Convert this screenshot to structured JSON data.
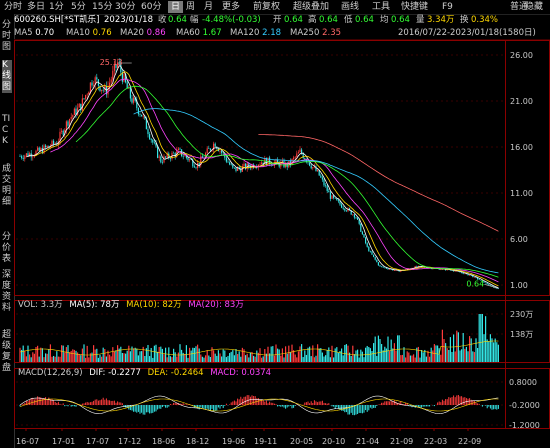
{
  "toolbar": {
    "items": [
      "分时",
      "多日",
      "1分",
      "5分",
      "15分",
      "30分",
      "60分",
      "日",
      "周",
      "月",
      "更多",
      "前复权",
      "超级叠加",
      "画线",
      "工具",
      "快捷键",
      "F9",
      "普通",
      "隐藏"
    ],
    "active_index": 7
  },
  "side_tabs": [
    "分时图",
    "K线图",
    "TICK",
    "成交明细",
    "分价表",
    "深度资料",
    "超级复盘"
  ],
  "quote": {
    "symbol": "600260.SH[*ST凯乐]",
    "date": "2023/01/18",
    "close_label": "收",
    "close": "0.64",
    "change_label": "幅",
    "change": "-4.48%(-0.03)",
    "open_label": "开",
    "open": "0.64",
    "high_label": "高",
    "high": "0.64",
    "low_label": "低",
    "low": "0.64",
    "avg_label": "均",
    "avg": "0.64",
    "volume_label": "量",
    "volume": "3.34万",
    "turnover_label": "换",
    "turnover": "0.34%"
  },
  "ma": [
    {
      "label": "MA5",
      "value": "0.70",
      "color": "#ffffff"
    },
    {
      "label": "MA10",
      "value": "0.76",
      "color": "#ffd800"
    },
    {
      "label": "MA20",
      "value": "0.86",
      "color": "#ff44ff"
    },
    {
      "label": "MA60",
      "value": "1.67",
      "color": "#33ff33"
    },
    {
      "label": "MA120",
      "value": "2.18",
      "color": "#33ccff"
    },
    {
      "label": "MA250",
      "value": "2.35",
      "color": "#ff6666"
    }
  ],
  "range_text": "2016/07/22-2023/01/18(1580日)",
  "price_axis": [
    "26.00",
    "21.00",
    "16.00",
    "11.00",
    "6.00",
    "1.00"
  ],
  "annotations": {
    "high": "25.13",
    "low": "0.64"
  },
  "vol_panel": {
    "label": "VOL: 3.3万",
    "ma5": "MA(5): 78万",
    "ma10": "MA(10): 82万",
    "ma20": "MA(20): 83万",
    "axis": [
      "230万",
      "138万"
    ]
  },
  "macd_panel": {
    "label": "MACD(12,26,9)",
    "dif": "DIF: -0.2277",
    "dea": "DEA: -0.2464",
    "macd": "MACD: 0.0374",
    "axis": [
      "0.8000",
      "-0.2000",
      "-1.2000"
    ]
  },
  "date_axis": [
    "16-07",
    "17-01",
    "17-07",
    "17-12",
    "18-06",
    "18-12",
    "19-06",
    "19-11",
    "20-05",
    "20-10",
    "21-04",
    "21-09",
    "22-03",
    "22-09"
  ],
  "colors": {
    "up": "#ff3b3b",
    "down": "#33e6e6",
    "white": "#ffffff",
    "grid": "#3a0000",
    "border": "#8b0000"
  },
  "chart_data": {
    "type": "candlestick",
    "price_ylim": [
      1.0,
      26.0
    ],
    "close_path": [
      [
        "2016-07",
        15.0
      ],
      [
        "2016-10",
        15.5
      ],
      [
        "2017-01",
        16.5
      ],
      [
        "2017-03",
        19.0
      ],
      [
        "2017-05",
        20.5
      ],
      [
        "2017-07",
        23.5
      ],
      [
        "2017-09",
        22.0
      ],
      [
        "2017-11",
        25.13
      ],
      [
        "2018-01",
        21.5
      ],
      [
        "2018-03",
        19.5
      ],
      [
        "2018-06",
        14.5
      ],
      [
        "2018-09",
        15.5
      ],
      [
        "2018-12",
        14.0
      ],
      [
        "2019-03",
        16.5
      ],
      [
        "2019-06",
        13.5
      ],
      [
        "2019-09",
        14.0
      ],
      [
        "2019-11",
        14.5
      ],
      [
        "2020-03",
        14.0
      ],
      [
        "2020-05",
        15.5
      ],
      [
        "2020-08",
        13.0
      ],
      [
        "2020-10",
        10.5
      ],
      [
        "2020-12",
        9.5
      ],
      [
        "2021-02",
        8.5
      ],
      [
        "2021-04",
        5.0
      ],
      [
        "2021-06",
        3.0
      ],
      [
        "2021-09",
        2.5
      ],
      [
        "2021-12",
        3.0
      ],
      [
        "2022-03",
        2.8
      ],
      [
        "2022-06",
        2.6
      ],
      [
        "2022-09",
        2.0
      ],
      [
        "2023-01",
        0.64
      ]
    ]
  }
}
